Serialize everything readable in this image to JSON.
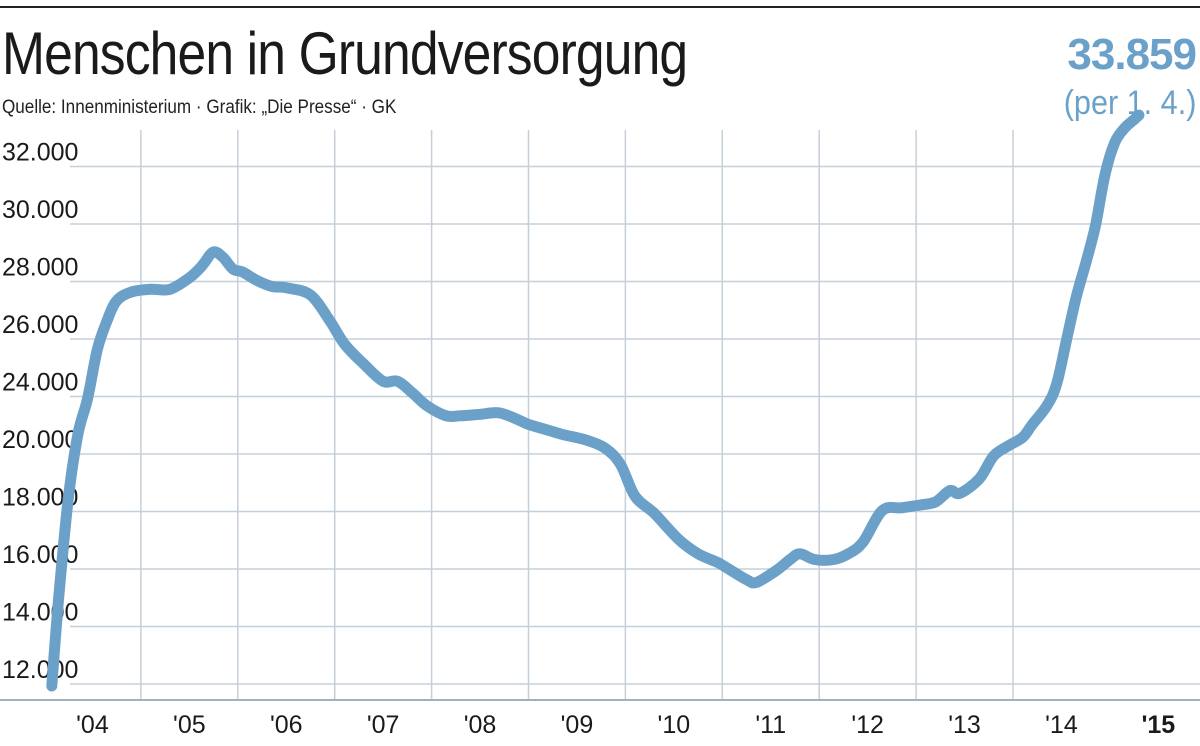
{
  "header": {
    "title": "Menschen in Grundversorgung",
    "source": "Quelle: Innenministerium · Grafik: „Die Presse“ · GK",
    "highlight_value": "33.859",
    "highlight_note": "(per 1. 4.)"
  },
  "colors": {
    "line": "#6ba1c9",
    "grid": "#c5cfd8",
    "text": "#1a1a1a"
  },
  "chart_data": {
    "type": "line",
    "title": "Menschen in Grundversorgung",
    "xlabel": "",
    "ylabel": "",
    "grid": true,
    "legend": "none",
    "y_ticks": [
      12000,
      14000,
      16000,
      18000,
      20000,
      24000,
      26000,
      28000,
      30000,
      32000
    ],
    "y_tick_labels": [
      "12.000",
      "14.000",
      "16.000",
      "18.000",
      "20.000",
      "24.000",
      "26.000",
      "28.000",
      "30.000",
      "32.000"
    ],
    "x_ticks": [
      2004,
      2005,
      2006,
      2007,
      2008,
      2009,
      2010,
      2011,
      2012,
      2013,
      2014,
      2015
    ],
    "x_tick_labels": [
      "'04",
      "'05",
      "'06",
      "'07",
      "'08",
      "'09",
      "'10",
      "'11",
      "'12",
      "'13",
      "'14",
      "'15"
    ],
    "x_range": [
      2004,
      2015.5
    ],
    "series": [
      {
        "name": "Menschen in Grundversorgung",
        "x": [
          2004.08,
          2004.15,
          2004.25,
          2004.35,
          2004.45,
          2004.55,
          2004.65,
          2004.75,
          2004.9,
          2005.1,
          2005.3,
          2005.5,
          2005.6,
          2005.65,
          2005.75,
          2005.85,
          2005.95,
          2006.05,
          2006.2,
          2006.35,
          2006.5,
          2006.75,
          2006.95,
          2007.1,
          2007.3,
          2007.5,
          2007.65,
          2007.8,
          2007.95,
          2008.15,
          2008.3,
          2008.5,
          2008.7,
          2008.9,
          2009.0,
          2009.2,
          2009.35,
          2009.6,
          2009.8,
          2009.95,
          2010.1,
          2010.3,
          2010.55,
          2010.75,
          2010.95,
          2011.1,
          2011.25,
          2011.35,
          2011.55,
          2011.7,
          2011.8,
          2011.95,
          2012.15,
          2012.3,
          2012.45,
          2012.65,
          2012.85,
          2013.05,
          2013.2,
          2013.35,
          2013.45,
          2013.65,
          2013.8,
          2013.95,
          2014.1,
          2014.2,
          2014.35,
          2014.45,
          2014.55,
          2014.65,
          2014.75,
          2014.85,
          2014.95,
          2015.05,
          2015.15,
          2015.25,
          2015.3
        ],
        "y": [
          12000,
          15000,
          18500,
          21500,
          24000,
          25700,
          26700,
          27400,
          27700,
          27800,
          27800,
          28200,
          28500,
          28700,
          29100,
          28900,
          28500,
          28400,
          28100,
          27900,
          27850,
          27600,
          26700,
          25900,
          25200,
          24600,
          24600,
          24200,
          23500,
          22800,
          22800,
          22900,
          23000,
          22500,
          22200,
          21800,
          21500,
          21100,
          20500,
          19700,
          18600,
          18000,
          17100,
          16600,
          16300,
          16000,
          15700,
          15600,
          16000,
          16400,
          16600,
          16400,
          16400,
          16600,
          17000,
          18100,
          18200,
          18300,
          18400,
          18800,
          18700,
          19200,
          20000,
          20700,
          21300,
          22200,
          23500,
          24500,
          26000,
          27500,
          28700,
          30000,
          31800,
          32900,
          33400,
          33700,
          33859
        ]
      }
    ],
    "annotation": "33.859 (per 1. 4.)"
  }
}
